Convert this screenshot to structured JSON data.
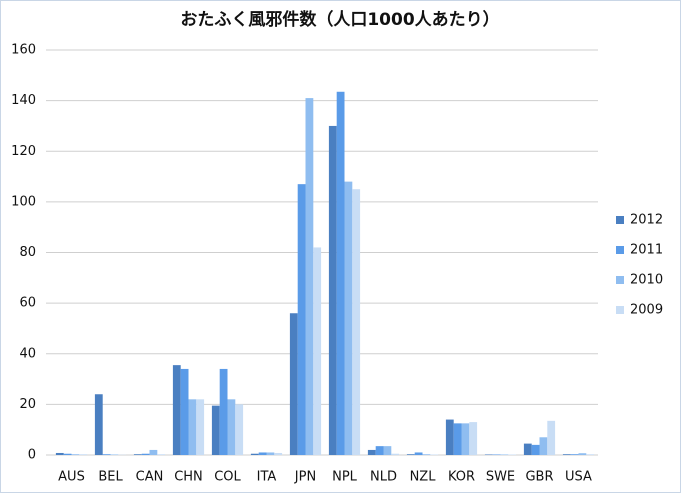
{
  "chart_data": {
    "type": "bar",
    "title": "おたふく風邪件数（人口1000人あたり）",
    "categories": [
      "AUS",
      "BEL",
      "CAN",
      "CHN",
      "COL",
      "ITA",
      "JPN",
      "NPL",
      "NLD",
      "NZL",
      "KOR",
      "SWE",
      "GBR",
      "USA"
    ],
    "series": [
      {
        "name": "2012",
        "color": "#4a7fc1",
        "values": [
          0.8,
          24,
          0.3,
          35.5,
          19.5,
          0.5,
          56,
          130,
          2,
          0.3,
          14,
          0.2,
          4.5,
          0.3
        ]
      },
      {
        "name": "2011",
        "color": "#5a9be8",
        "values": [
          0.5,
          0.3,
          0.5,
          34,
          34,
          1,
          107,
          143.5,
          3.5,
          1,
          12.5,
          0.2,
          4,
          0.3
        ]
      },
      {
        "name": "2010",
        "color": "#8fbdf0",
        "values": [
          0.3,
          0.2,
          2,
          22,
          22,
          1,
          141,
          108,
          3.5,
          0.3,
          12.5,
          0.2,
          7,
          0.7
        ]
      },
      {
        "name": "2009",
        "color": "#c8ddf5",
        "values": [
          0.3,
          0.1,
          0.3,
          22,
          20,
          0.8,
          82,
          105,
          0.5,
          0.2,
          13,
          0.2,
          13.5,
          0.3
        ]
      }
    ],
    "ylim": [
      0,
      160
    ],
    "yticks": [
      0,
      20,
      40,
      60,
      80,
      100,
      120,
      140,
      160
    ],
    "grid": true,
    "legend": "right"
  }
}
